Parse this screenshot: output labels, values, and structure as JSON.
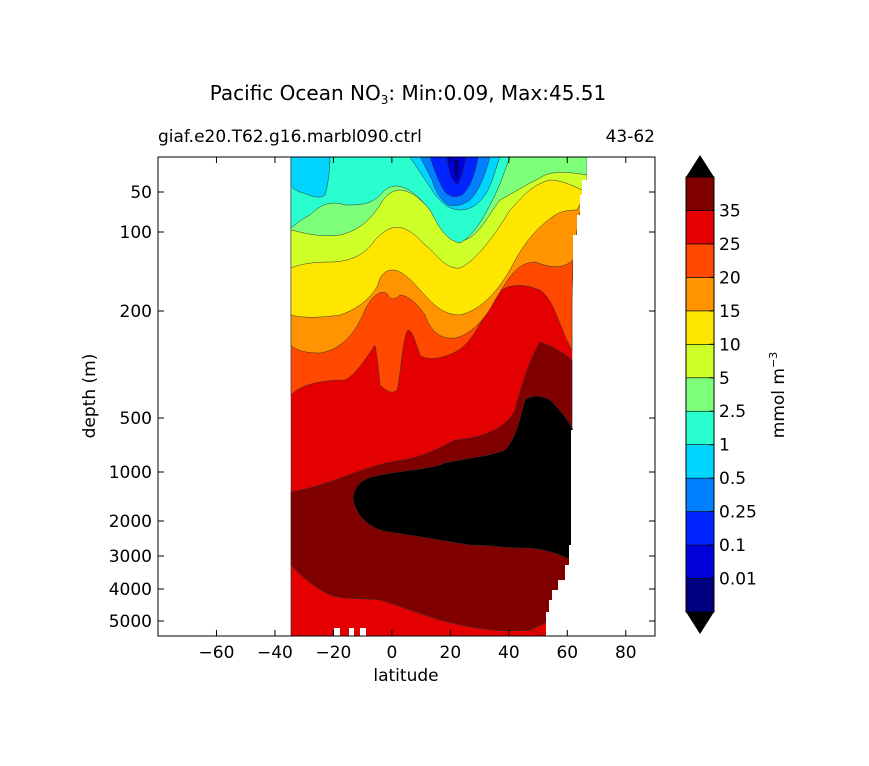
{
  "chart_data": {
    "type": "contour",
    "title": {
      "prefix": "Pacific Ocean NO",
      "subscript": "3",
      "suffix": ": Min:0.09, Max:45.51"
    },
    "subtitle_left": "giaf.e20.T62.g16.marbl090.ctrl",
    "subtitle_right": "43-62",
    "xlabel": "latitude",
    "ylabel": "depth (m)",
    "xlim": [
      -80,
      90
    ],
    "x_ticks": [
      -60,
      -40,
      -20,
      0,
      20,
      40,
      60,
      80
    ],
    "x_tick_labels": [
      "−60",
      "−40",
      "−20",
      "0",
      "20",
      "40",
      "60",
      "80"
    ],
    "y_scale": "irregular (compressed with depth)",
    "y_ticks": [
      "50",
      "100",
      "200",
      "500",
      "1000",
      "2000",
      "3000",
      "4000",
      "5000"
    ],
    "y_inverted": true,
    "data_extent_lat": [
      -34,
      67
    ],
    "colorbar": {
      "label": "mmol m",
      "label_sup": "−3",
      "tick_labels": [
        "0.01",
        "0.1",
        "0.25",
        "0.5",
        "1",
        "2.5",
        "5",
        "10",
        "15",
        "20",
        "25",
        "35"
      ],
      "levels": [
        0,
        0.01,
        0.1,
        0.25,
        0.5,
        1,
        2.5,
        5,
        10,
        15,
        20,
        25,
        35,
        45
      ],
      "colors": [
        "#000080",
        "#0000d8",
        "#0024ff",
        "#0080ff",
        "#00d4ff",
        "#29ffce",
        "#7dff7a",
        "#ceff29",
        "#ffe600",
        "#ff9400",
        "#ff4800",
        "#e40000",
        "#800000"
      ],
      "under_color": "#000000",
      "over_color": "#000000",
      "extend": "both"
    },
    "bands": [
      {
        "level": "0-0.01",
        "color": "#000080"
      },
      {
        "level": "0.01-0.1",
        "color": "#0000d8"
      },
      {
        "level": "0.1-0.25",
        "color": "#0024ff"
      },
      {
        "level": "0.25-0.5",
        "color": "#0080ff"
      },
      {
        "level": "0.5-1",
        "color": "#00d4ff"
      },
      {
        "level": "1-2.5",
        "color": "#29ffce"
      },
      {
        "level": "2.5-5",
        "color": "#7dff7a"
      },
      {
        "level": "5-10",
        "color": "#ceff29"
      },
      {
        "level": "10-15",
        "color": "#ffe600"
      },
      {
        "level": "15-20",
        "color": "#ff9400"
      },
      {
        "level": "20-25",
        "color": "#ff4800"
      },
      {
        "level": "25-35",
        "color": "#e40000"
      },
      {
        "level": "35-45",
        "color": "#800000"
      },
      {
        "level": ">45",
        "color": "#000000"
      }
    ]
  }
}
